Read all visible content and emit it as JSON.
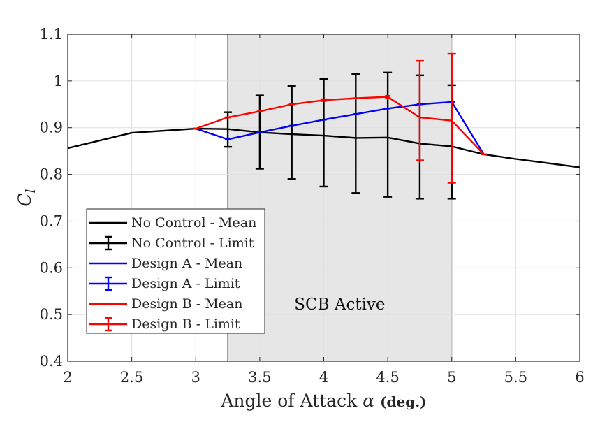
{
  "chart_data": {
    "type": "line",
    "title": "",
    "xlabel": "Angle of Attack",
    "xlabel_symbol": "α",
    "xlabel_unit": "(deg.)",
    "ylabel": "C",
    "ylabel_sub": "l",
    "xlim": [
      2,
      6
    ],
    "ylim": [
      0.4,
      1.1
    ],
    "xticks": [
      2,
      2.5,
      3,
      3.5,
      4,
      4.5,
      5,
      5.5,
      6
    ],
    "xtick_labels": [
      "2",
      "2.5",
      "3",
      "3.5",
      "4",
      "4.5",
      "5",
      "5.5",
      "6"
    ],
    "yticks": [
      0.4,
      0.5,
      0.6,
      0.7,
      0.8,
      0.9,
      1.0,
      1.1
    ],
    "ytick_labels": [
      "0.4",
      "0.5",
      "0.6",
      "0.7",
      "0.8",
      "0.9",
      "1",
      "1.1"
    ],
    "grid": true,
    "shaded_region": {
      "x": [
        3.25,
        5.0
      ],
      "label": "SCB Active",
      "color": "#e6e6e6"
    },
    "legend_position": "lower-left",
    "series": [
      {
        "name": "No Control - Mean",
        "color": "#000000",
        "x": [
          2,
          2.5,
          3,
          3.25,
          3.5,
          3.75,
          4,
          4.25,
          4.5,
          4.75,
          5,
          5.25,
          5.5,
          6
        ],
        "y": [
          0.856,
          0.889,
          0.898,
          0.897,
          0.89,
          0.886,
          0.883,
          0.878,
          0.879,
          0.866,
          0.86,
          0.843,
          0.833,
          0.815
        ]
      },
      {
        "name": "No Control - Limit",
        "color": "#000000",
        "errorbar": true,
        "x": [
          3.25,
          3.5,
          3.75,
          4,
          4.25,
          4.5,
          4.75,
          5
        ],
        "lower": [
          0.859,
          0.812,
          0.79,
          0.774,
          0.76,
          0.752,
          0.748,
          0.748
        ],
        "upper": [
          0.933,
          0.969,
          0.989,
          1.004,
          1.015,
          1.018,
          1.012,
          0.991
        ]
      },
      {
        "name": "Design A - Mean",
        "color": "#0000ff",
        "x": [
          3,
          3.25,
          3.5,
          3.75,
          4,
          4.25,
          4.5,
          4.75,
          5,
          5.25
        ],
        "y": [
          0.898,
          0.875,
          0.89,
          0.904,
          0.917,
          0.929,
          0.941,
          0.95,
          0.955,
          0.843
        ]
      },
      {
        "name": "Design A - Limit",
        "color": "#0000ff",
        "errorbar": true,
        "x": [
          3,
          3.25,
          3.5,
          3.75,
          4,
          4.25,
          4.5,
          4.75,
          5,
          5.25
        ],
        "lower": [
          0.898,
          0.875,
          0.89,
          0.904,
          0.917,
          0.929,
          0.941,
          0.95,
          0.955,
          0.843
        ],
        "upper": [
          0.898,
          0.875,
          0.89,
          0.904,
          0.917,
          0.929,
          0.941,
          0.95,
          0.955,
          0.843
        ]
      },
      {
        "name": "Design B - Mean",
        "color": "#ff0000",
        "x": [
          3,
          3.25,
          3.5,
          3.75,
          4,
          4.25,
          4.5,
          4.75,
          5,
          5.25
        ],
        "y": [
          0.898,
          0.922,
          0.935,
          0.95,
          0.959,
          0.963,
          0.966,
          0.922,
          0.915,
          0.843
        ]
      },
      {
        "name": "Design B - Limit",
        "color": "#ff0000",
        "errorbar": true,
        "x": [
          3,
          3.25,
          3.5,
          3.75,
          4,
          4.25,
          4.5,
          4.75,
          5,
          5.25
        ],
        "lower": [
          0.898,
          0.922,
          0.935,
          0.95,
          0.957,
          0.963,
          0.964,
          0.83,
          0.782,
          0.843
        ],
        "upper": [
          0.898,
          0.922,
          0.935,
          0.95,
          0.961,
          0.963,
          0.968,
          1.043,
          1.058,
          0.843
        ]
      }
    ]
  }
}
